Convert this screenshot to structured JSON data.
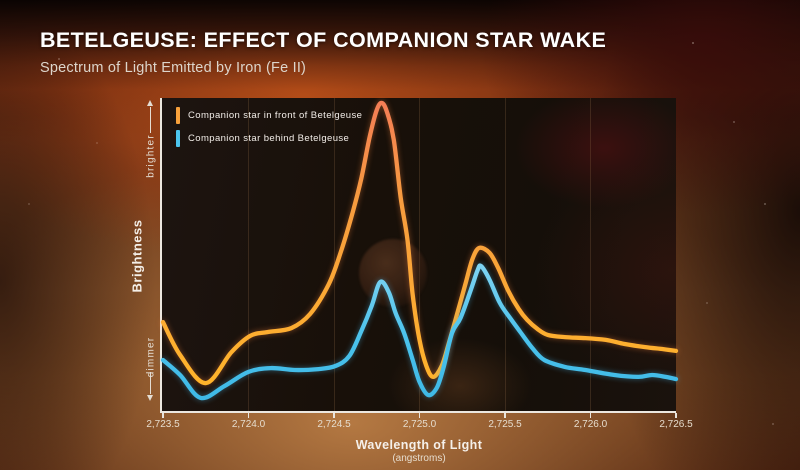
{
  "header": {
    "title": "BETELGEUSE: EFFECT OF COMPANION STAR WAKE",
    "subtitle": "Spectrum of Light Emitted by Iron (Fe II)"
  },
  "legend": {
    "items": [
      {
        "label": "Companion star in front of Betelgeuse",
        "color": "#F9A13B"
      },
      {
        "label": "Companion star behind Betelgeuse",
        "color": "#4CC5EE"
      }
    ]
  },
  "y_axis": {
    "label": "Brightness",
    "top_annotation": "brighter",
    "bottom_annotation": "dimmer"
  },
  "x_axis": {
    "label": "Wavelength of Light",
    "sublabel": "(angstroms)",
    "tick_labels": [
      "2,723.5",
      "2,724.0",
      "2,724.5",
      "2,725.0",
      "2,725.5",
      "2,726.0",
      "2,726.5"
    ]
  },
  "chart_data": {
    "type": "line",
    "title": "Betelgeuse: Effect of Companion Star Wake — Spectrum of Light Emitted by Iron (Fe II)",
    "xlabel": "Wavelength of Light (angstroms)",
    "ylabel": "Brightness (relative, dimmer to brighter)",
    "xlim": [
      2723.5,
      2726.5
    ],
    "ylim": [
      0,
      1
    ],
    "x_ticks": [
      2723.5,
      2724.0,
      2724.5,
      2725.0,
      2725.5,
      2726.0,
      2726.5
    ],
    "grid": "vertical-only",
    "legend_position": "top-left inside plot",
    "series": [
      {
        "name": "Companion star in front of Betelgeuse",
        "color": "#F9A13B",
        "points": [
          [
            2723.5,
            0.284
          ],
          [
            2723.6,
            0.179
          ],
          [
            2723.75,
            0.089
          ],
          [
            2723.9,
            0.188
          ],
          [
            2724.01,
            0.24
          ],
          [
            2724.11,
            0.252
          ],
          [
            2724.25,
            0.265
          ],
          [
            2724.36,
            0.31
          ],
          [
            2724.47,
            0.406
          ],
          [
            2724.54,
            0.508
          ],
          [
            2724.61,
            0.636
          ],
          [
            2724.66,
            0.744
          ],
          [
            2724.71,
            0.879
          ],
          [
            2724.75,
            0.962
          ],
          [
            2724.78,
            0.984
          ],
          [
            2724.81,
            0.955
          ],
          [
            2724.85,
            0.866
          ],
          [
            2724.89,
            0.681
          ],
          [
            2724.93,
            0.546
          ],
          [
            2724.96,
            0.371
          ],
          [
            2725.0,
            0.227
          ],
          [
            2725.04,
            0.144
          ],
          [
            2725.08,
            0.109
          ],
          [
            2725.13,
            0.144
          ],
          [
            2725.17,
            0.214
          ],
          [
            2725.22,
            0.31
          ],
          [
            2725.27,
            0.409
          ],
          [
            2725.31,
            0.486
          ],
          [
            2725.35,
            0.521
          ],
          [
            2725.41,
            0.505
          ],
          [
            2725.46,
            0.457
          ],
          [
            2725.52,
            0.383
          ],
          [
            2725.58,
            0.326
          ],
          [
            2725.63,
            0.291
          ],
          [
            2725.69,
            0.262
          ],
          [
            2725.75,
            0.243
          ],
          [
            2725.85,
            0.236
          ],
          [
            2725.97,
            0.233
          ],
          [
            2726.09,
            0.227
          ],
          [
            2726.2,
            0.214
          ],
          [
            2726.32,
            0.204
          ],
          [
            2726.42,
            0.198
          ],
          [
            2726.5,
            0.192
          ]
        ]
      },
      {
        "name": "Companion star behind Betelgeuse",
        "color": "#4CC5EE",
        "points": [
          [
            2723.5,
            0.163
          ],
          [
            2723.6,
            0.115
          ],
          [
            2723.72,
            0.042
          ],
          [
            2723.86,
            0.08
          ],
          [
            2724.0,
            0.125
          ],
          [
            2724.13,
            0.137
          ],
          [
            2724.27,
            0.131
          ],
          [
            2724.41,
            0.134
          ],
          [
            2724.51,
            0.144
          ],
          [
            2724.59,
            0.176
          ],
          [
            2724.66,
            0.256
          ],
          [
            2724.72,
            0.335
          ],
          [
            2724.77,
            0.412
          ],
          [
            2724.82,
            0.38
          ],
          [
            2724.86,
            0.313
          ],
          [
            2724.91,
            0.249
          ],
          [
            2724.96,
            0.163
          ],
          [
            2725.0,
            0.093
          ],
          [
            2725.05,
            0.051
          ],
          [
            2725.1,
            0.073
          ],
          [
            2725.14,
            0.137
          ],
          [
            2725.19,
            0.249
          ],
          [
            2725.24,
            0.297
          ],
          [
            2725.3,
            0.387
          ],
          [
            2725.34,
            0.45
          ],
          [
            2725.36,
            0.463
          ],
          [
            2725.41,
            0.419
          ],
          [
            2725.47,
            0.345
          ],
          [
            2725.53,
            0.297
          ],
          [
            2725.59,
            0.252
          ],
          [
            2725.66,
            0.201
          ],
          [
            2725.73,
            0.163
          ],
          [
            2725.85,
            0.141
          ],
          [
            2725.97,
            0.131
          ],
          [
            2726.14,
            0.115
          ],
          [
            2726.28,
            0.109
          ],
          [
            2726.36,
            0.115
          ],
          [
            2726.44,
            0.109
          ],
          [
            2726.5,
            0.102
          ]
        ]
      }
    ]
  }
}
